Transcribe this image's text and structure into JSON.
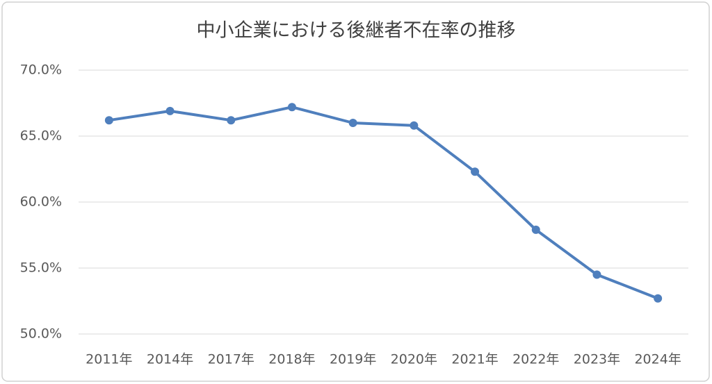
{
  "chart_data": {
    "type": "line",
    "title": "中小企業における後継者不在率の推移",
    "categories": [
      "2011年",
      "2014年",
      "2017年",
      "2018年",
      "2019年",
      "2020年",
      "2021年",
      "2022年",
      "2023年",
      "2024年"
    ],
    "values": [
      66.2,
      66.9,
      66.2,
      67.2,
      66.0,
      65.8,
      62.3,
      57.9,
      54.5,
      52.7
    ],
    "color": "#4f7fbd",
    "ylim": [
      50,
      70
    ],
    "yticks": [
      {
        "value": 50,
        "label": "50.0%"
      },
      {
        "value": 55,
        "label": "55.0%"
      },
      {
        "value": 60,
        "label": "60.0%"
      },
      {
        "value": 65,
        "label": "65.0%"
      },
      {
        "value": 70,
        "label": "70.0%"
      }
    ],
    "grid": true
  }
}
